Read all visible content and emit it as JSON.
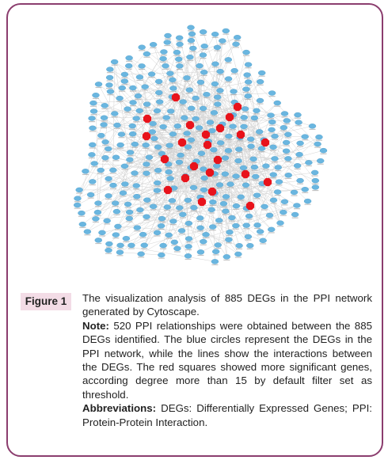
{
  "figure": {
    "label": "Figure 1",
    "caption": "The visualization analysis of 885 DEGs in the PPI network generated by Cytoscape.",
    "note_label": "Note:",
    "note": "520 PPI relationships were obtained between the 885 DEGs identified. The blue circles represent the DEGs in the PPI network, while the lines show the interactions between the DEGs. The red squares showed more significant genes, according degree more than 15 by default filter set as threshold.",
    "abbreviations_label": "Abbreviations:",
    "abbreviations": "DEGs: Differentially Expressed Genes; PPI: Protein-Protein Interaction."
  }
}
